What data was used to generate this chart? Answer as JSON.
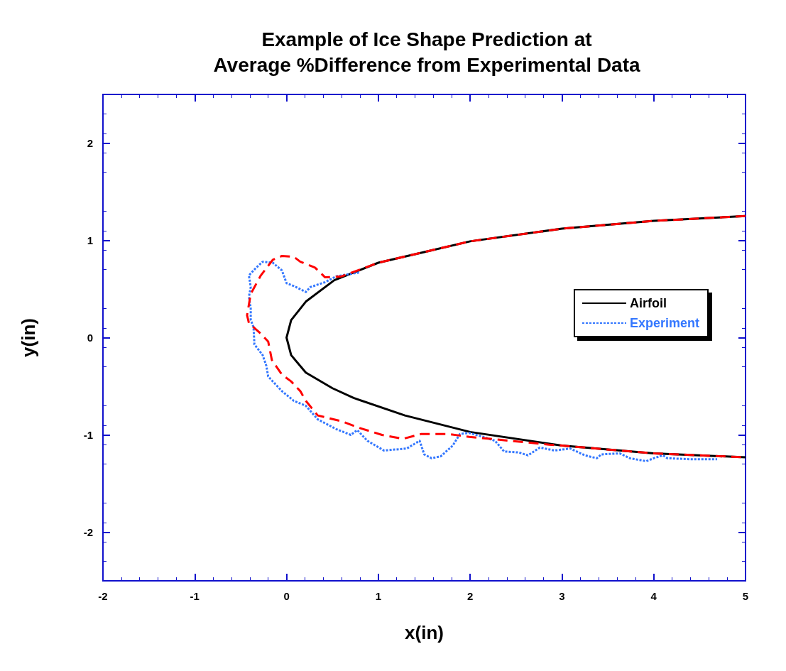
{
  "chart_data": {
    "type": "line",
    "title": "Example of Ice Shape Prediction at\nAverage %Difference from Experimental Data",
    "xlabel": "x(in)",
    "ylabel": "y(in)",
    "xlim": [
      -2,
      5
    ],
    "xticks": [
      -2,
      -1,
      0,
      1,
      2,
      3,
      4,
      5
    ],
    "ylim": [
      -2.5,
      2.5
    ],
    "yticks": [
      -2,
      -1,
      0,
      1,
      2
    ],
    "grid": false,
    "legend": "right",
    "marker": "none",
    "series": [
      {
        "name": "Airfoil",
        "color": "#000000",
        "line_style": "solid",
        "x": [
          5,
          4,
          3,
          2,
          1.5,
          1,
          0.52,
          0.21,
          0.05,
          0,
          0.05,
          0.21,
          0.5,
          0.73,
          1.29,
          2,
          3,
          4,
          5
        ],
        "values": [
          1.25,
          1.2,
          1.12,
          0.99,
          0.88,
          0.77,
          0.59,
          0.37,
          0.18,
          0,
          -0.18,
          -0.36,
          -0.52,
          -0.62,
          -0.8,
          -0.97,
          -1.11,
          -1.19,
          -1.23
        ]
      },
      {
        "name": "Experiment",
        "color": "#3377ff",
        "line_style": "dotted",
        "x": [
          0.79,
          0.73,
          0.54,
          0.42,
          0.26,
          0.21,
          0.08,
          0,
          -0.05,
          -0.15,
          -0.26,
          -0.33,
          -0.41,
          -0.39,
          -0.41,
          -0.39,
          -0.39,
          -0.36,
          -0.35,
          -0.26,
          -0.22,
          -0.2,
          -0.05,
          0.08,
          0.21,
          0.34,
          0.54,
          0.7,
          0.77,
          0.88,
          1.06,
          1.31,
          1.45,
          1.5,
          1.58,
          1.68,
          1.81,
          1.89,
          1.99,
          2.14,
          2.27,
          2.37,
          2.53,
          2.63,
          2.76,
          2.92,
          3.09,
          3.25,
          3.38,
          3.43,
          3.63,
          3.74,
          3.92,
          4.0,
          4.1,
          4.15,
          4.41,
          4.69
        ],
        "values": [
          0.67,
          0.66,
          0.63,
          0.57,
          0.52,
          0.47,
          0.53,
          0.56,
          0.69,
          0.77,
          0.78,
          0.72,
          0.64,
          0.52,
          0.42,
          0.3,
          0.18,
          0.11,
          -0.07,
          -0.18,
          -0.29,
          -0.4,
          -0.55,
          -0.65,
          -0.7,
          -0.84,
          -0.94,
          -1.0,
          -0.95,
          -1.06,
          -1.16,
          -1.14,
          -1.06,
          -1.2,
          -1.24,
          -1.22,
          -1.11,
          -0.99,
          -0.98,
          -1.02,
          -1.06,
          -1.17,
          -1.18,
          -1.21,
          -1.13,
          -1.16,
          -1.14,
          -1.21,
          -1.24,
          -1.2,
          -1.19,
          -1.24,
          -1.27,
          -1.24,
          -1.21,
          -1.24,
          -1.25,
          -1.25
        ]
      },
      {
        "color": "#ff0000",
        "line_style": "dashed",
        "x": [
          5,
          4,
          3,
          2,
          1.5,
          1,
          0.6,
          0.42,
          0.31,
          0.15,
          0.08,
          -0.05,
          -0.15,
          -0.28,
          -0.39,
          -0.43,
          -0.41,
          -0.28,
          -0.2,
          -0.16,
          -0.05,
          0.05,
          0.15,
          0.21,
          0.34,
          0.6,
          0.8,
          1.04,
          1.27,
          1.47,
          1.76,
          1.99,
          2.22,
          2.43,
          2.86,
          3,
          4,
          5
        ],
        "values": [
          1.25,
          1.2,
          1.12,
          0.99,
          0.88,
          0.77,
          0.63,
          0.62,
          0.72,
          0.78,
          0.83,
          0.84,
          0.8,
          0.64,
          0.45,
          0.23,
          0.15,
          0.04,
          -0.04,
          -0.23,
          -0.38,
          -0.45,
          -0.55,
          -0.65,
          -0.8,
          -0.86,
          -0.93,
          -1.0,
          -1.04,
          -0.99,
          -0.99,
          -1.02,
          -1.04,
          -1.06,
          -1.1,
          -1.11,
          -1.19,
          -1.23
        ]
      }
    ]
  }
}
